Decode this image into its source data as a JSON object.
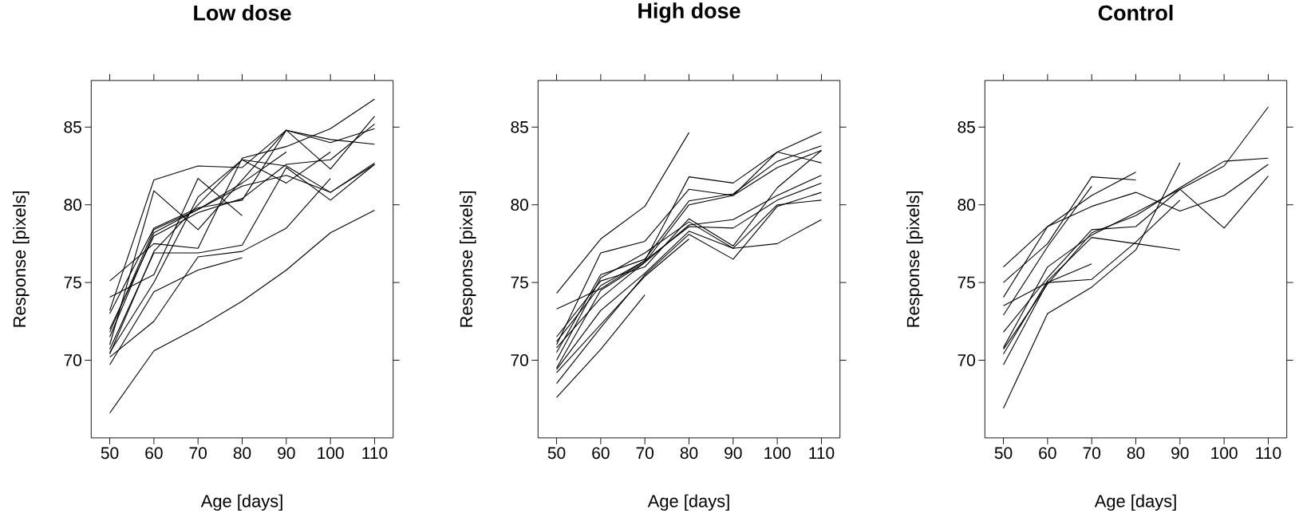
{
  "chart_data": [
    {
      "type": "line",
      "title": "Low dose",
      "xlabel": "Age [days]",
      "ylabel": "Response [pixels]",
      "x": [
        50,
        60,
        70,
        80,
        90,
        100,
        110
      ],
      "xlim": [
        45.8,
        114.2
      ],
      "ylim": [
        65,
        88
      ],
      "xticks": [
        50,
        60,
        70,
        80,
        90,
        100,
        110
      ],
      "yticks": [
        70,
        75,
        80,
        85
      ],
      "series": [
        {
          "color": "#000000",
          "values": [
            66.6,
            70.6,
            72.1,
            73.8,
            75.8,
            78.2,
            79.65
          ]
        },
        {
          "color": "#000000",
          "values": [
            69.7,
            74.4,
            75.8,
            76.6,
            null,
            null,
            null
          ]
        },
        {
          "color": "#000000",
          "values": [
            70.2,
            72.5,
            76.65,
            77.0,
            78.5,
            81.7,
            null
          ]
        },
        {
          "color": "#000000",
          "values": [
            73.2,
            81.6,
            82.5,
            82.4,
            84.8,
            84.2,
            83.9
          ]
        },
        {
          "color": "#000000",
          "values": [
            71.0,
            80.9,
            78.4,
            81.6,
            84.8,
            82.3,
            85.7
          ]
        },
        {
          "color": "#000000",
          "values": [
            75.1,
            77.5,
            77.2,
            83.0,
            83.75,
            84.9,
            86.8
          ]
        },
        {
          "color": "#000000",
          "values": [
            74.05,
            75.5,
            81.7,
            79.3,
            null,
            null,
            null
          ]
        },
        {
          "color": "#000000",
          "values": [
            70.7,
            76.9,
            76.9,
            77.4,
            82.4,
            80.3,
            82.6
          ]
        },
        {
          "color": "#000000",
          "values": [
            71.5,
            78.2,
            79.7,
            81.2,
            81.9,
            80.8,
            82.6
          ]
        },
        {
          "color": "#000000",
          "values": [
            72.0,
            78.0,
            79.5,
            80.4,
            82.6,
            82.9,
            85.2
          ]
        },
        {
          "color": "#000000",
          "values": [
            71.8,
            78.4,
            79.7,
            81.4,
            83.4,
            null,
            null
          ]
        },
        {
          "color": "#000000",
          "values": [
            70.5,
            75.0,
            80.5,
            82.9,
            81.4,
            83.4,
            null
          ]
        },
        {
          "color": "#000000",
          "values": [
            73.0,
            78.5,
            79.8,
            80.3,
            84.8,
            84.0,
            84.9
          ]
        },
        {
          "color": "#000000",
          "values": [
            70.4,
            77.0,
            80.0,
            82.9,
            82.5,
            80.8,
            82.7
          ]
        }
      ]
    },
    {
      "type": "line",
      "title": "High dose",
      "xlabel": "Age [days]",
      "ylabel": "Response [pixels]",
      "x": [
        50,
        60,
        70,
        80,
        90,
        100,
        110
      ],
      "xlim": [
        45.8,
        114.2
      ],
      "ylim": [
        65,
        88
      ],
      "xticks": [
        50,
        60,
        70,
        80,
        90,
        100,
        110
      ],
      "yticks": [
        70,
        75,
        80,
        85
      ],
      "series": [
        {
          "color": "#000000",
          "values": [
            67.6,
            70.7,
            74.2,
            null,
            null,
            null,
            null
          ]
        },
        {
          "color": "#000000",
          "values": [
            74.3,
            77.8,
            79.9,
            84.65,
            null,
            null,
            null
          ]
        },
        {
          "color": "#000000",
          "values": [
            73.3,
            74.6,
            76.4,
            81.8,
            81.4,
            83.4,
            82.7
          ]
        },
        {
          "color": "#000000",
          "values": [
            71.0,
            76.9,
            77.65,
            81.0,
            80.6,
            83.4,
            84.7
          ]
        },
        {
          "color": "#000000",
          "values": [
            70.5,
            75.5,
            76.5,
            80.25,
            80.7,
            82.8,
            83.8
          ]
        },
        {
          "color": "#000000",
          "values": [
            69.5,
            74.5,
            76.3,
            80.0,
            80.6,
            82.4,
            83.5
          ]
        },
        {
          "color": "#000000",
          "values": [
            71.5,
            75.1,
            76.0,
            79.1,
            77.35,
            81.1,
            83.5
          ]
        },
        {
          "color": "#000000",
          "values": [
            70.8,
            74.0,
            76.3,
            78.7,
            79.05,
            80.6,
            81.9
          ]
        },
        {
          "color": "#000000",
          "values": [
            71.2,
            74.8,
            76.4,
            78.6,
            78.5,
            80.3,
            81.4
          ]
        },
        {
          "color": "#000000",
          "values": [
            69.4,
            73.2,
            75.6,
            78.3,
            77.2,
            77.5,
            79.05
          ]
        },
        {
          "color": "#000000",
          "values": [
            68.5,
            72.1,
            75.5,
            78.1,
            76.5,
            79.9,
            80.8
          ]
        },
        {
          "color": "#000000",
          "values": [
            69.2,
            72.3,
            75.4,
            77.8,
            null,
            null,
            null
          ]
        },
        {
          "color": "#000000",
          "values": [
            70.0,
            75.3,
            76.9,
            78.9,
            77.2,
            80.0,
            80.3
          ]
        }
      ]
    },
    {
      "type": "line",
      "title": "Control",
      "xlabel": "Age [days]",
      "ylabel": "Response [pixels]",
      "x": [
        50,
        60,
        70,
        80,
        90,
        100,
        110
      ],
      "xlim": [
        45.8,
        114.2
      ],
      "ylim": [
        65,
        88
      ],
      "xticks": [
        50,
        60,
        70,
        80,
        90,
        100,
        110
      ],
      "yticks": [
        70,
        75,
        80,
        85
      ],
      "series": [
        {
          "color": "#000000",
          "values": [
            66.9,
            73.0,
            74.7,
            77.1,
            82.7,
            null,
            null
          ]
        },
        {
          "color": "#000000",
          "values": [
            69.7,
            75.0,
            75.2,
            77.6,
            80.3,
            null,
            null
          ]
        },
        {
          "color": "#000000",
          "values": [
            76.0,
            78.6,
            80.6,
            82.1,
            null,
            null,
            null
          ]
        },
        {
          "color": "#000000",
          "values": [
            75.0,
            77.5,
            81.8,
            81.6,
            null,
            null,
            null
          ]
        },
        {
          "color": "#000000",
          "values": [
            74.05,
            78.6,
            79.9,
            80.8,
            79.6,
            80.6,
            82.6
          ]
        },
        {
          "color": "#000000",
          "values": [
            72.9,
            77.3,
            81.2,
            null,
            null,
            null,
            null
          ]
        },
        {
          "color": "#000000",
          "values": [
            73.5,
            75.0,
            76.2,
            null,
            null,
            null,
            null
          ]
        },
        {
          "color": "#000000",
          "values": [
            71.8,
            75.3,
            78.4,
            78.6,
            81.0,
            78.5,
            81.85
          ]
        },
        {
          "color": "#000000",
          "values": [
            70.8,
            76.0,
            78.05,
            79.5,
            81.0,
            82.5,
            86.3
          ]
        },
        {
          "color": "#000000",
          "values": [
            70.7,
            74.9,
            78.2,
            79.3,
            81.1,
            82.8,
            83.0
          ]
        },
        {
          "color": "#000000",
          "values": [
            70.4,
            75.1,
            77.9,
            77.5,
            77.1,
            null,
            null
          ]
        }
      ]
    }
  ]
}
